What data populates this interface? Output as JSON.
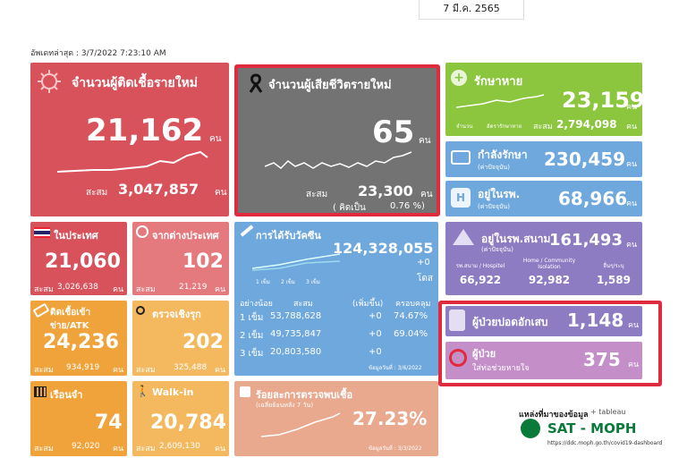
{
  "date_tab": "7 มี.ค. 2565",
  "updated": "อัพเดทล่าสุด : 3/7/2022 7:23:10 AM",
  "new_cases": {
    "title": "จำนวนผู้ติดเชื้อรายใหม่",
    "value": "21,162",
    "unit": "คน",
    "total_label": "สะสม",
    "total": "3,047,857",
    "total_unit": "คน"
  },
  "deaths": {
    "title": "จำนวนผู้เสียชีวิตรายใหม่",
    "value": "65",
    "unit": "คน",
    "total_label": "สะสม",
    "total": "23,300",
    "total_unit": "คน",
    "pct_label": "( คิดเป็น",
    "pct": "0.76 %)"
  },
  "recovered": {
    "title": "รักษาหาย",
    "value": "23,159",
    "unit": "คน",
    "legend1": "จำนวน",
    "legend2": "อัตรารักษาหาย",
    "total_label": "สะสม",
    "total": "2,794,098",
    "total_unit": "คน"
  },
  "treating": {
    "title": "กำลังรักษา",
    "sub": "(ค่าปัจจุบัน)",
    "value": "230,459",
    "unit": "คน"
  },
  "hospital": {
    "title": "อยู่ในรพ.",
    "sub": "(ค่าปัจจุบัน)",
    "value": "68,966",
    "unit": "คน"
  },
  "field_hospital": {
    "title": "อยู่ในรพ.สนาม",
    "sub": "(ค่าปัจจุบัน)",
    "value": "161,493",
    "unit": "คน",
    "cols": [
      {
        "label": "รพ.สนาม / Hospitel",
        "value": "66,922"
      },
      {
        "label": "Home / Community Isolation",
        "value": "92,982"
      },
      {
        "label": "อื่นๆ/ระบุ",
        "value": "1,589"
      }
    ]
  },
  "domestic": {
    "title": "ในประเทศ",
    "value": "21,060",
    "total_label": "สะสม",
    "total": "3,026,638",
    "unit": "คน"
  },
  "abroad": {
    "title": "จากต่างประเทศ",
    "value": "102",
    "total_label": "สะสม",
    "total": "21,219",
    "unit": "คน"
  },
  "prison_atk": {
    "title": "ติดเชื้อเข้าข่าย/ATK",
    "value": "24,236",
    "total_label": "สะสม",
    "total": "934,919",
    "unit": "คน"
  },
  "active_search": {
    "title": "ตรวจเชิงรุก",
    "value": "202",
    "total_label": "สะสม",
    "total": "325,488",
    "unit": "คน"
  },
  "prison": {
    "title": "เรือนจำ",
    "value": "74",
    "total_label": "สะสม",
    "total": "92,020",
    "unit": "คน"
  },
  "walkin": {
    "title": "Walk-in",
    "value": "20,784",
    "total_label": "สะสม",
    "total": "2,609,130",
    "unit": "คน"
  },
  "vaccine": {
    "title": "การได้รับวัคซีน",
    "value": "124,328,055",
    "plus": "+0",
    "unit": "โดส",
    "legend": [
      "1 เข็ม",
      "2 เข็ม",
      "3 เข็ม"
    ],
    "headers": [
      "อย่างน้อย",
      "สะสม",
      "(เพิ่มขึ้น)",
      "ครอบคลุม"
    ],
    "rows": [
      [
        "1 เข็ม",
        "53,788,628",
        "+0",
        "74.67%"
      ],
      [
        "2 เข็ม",
        "49,735,847",
        "+0",
        "69.04%"
      ],
      [
        "3 เข็ม",
        "20,803,580",
        "+0",
        ""
      ]
    ],
    "note": "ข้อมูลวันที่ : 3/6/2022"
  },
  "positivity": {
    "title": "ร้อยละการตรวจพบเชื้อ",
    "sub": "(เฉลี่ยย้อนหลัง 7 วัน)",
    "value": "27.23%",
    "note": "ข้อมูลวันที่ : 3/3/2022"
  },
  "pneumonia": {
    "title": "ผู้ป่วยปอดอักเสบ",
    "value": "1,148",
    "unit": "คน"
  },
  "ventilator": {
    "title1": "ผู้ป่วย",
    "title2": "ใส่ท่อช่วยหายใจ",
    "value": "375",
    "unit": "คน"
  },
  "source": {
    "label": "แหล่งที่มาของข้อมูล",
    "tableau": "+ tableau",
    "brand": "SAT - MOPH",
    "url": "https://ddc.moph.go.th/covid19-dashboard"
  },
  "colors": {
    "red": "#d8525c",
    "gray": "#737373",
    "green": "#8cc63f",
    "blue": "#6fa8dc",
    "purple": "#8e7cc3",
    "orange": "#f0a33a",
    "highlight": "#e02a3e"
  }
}
